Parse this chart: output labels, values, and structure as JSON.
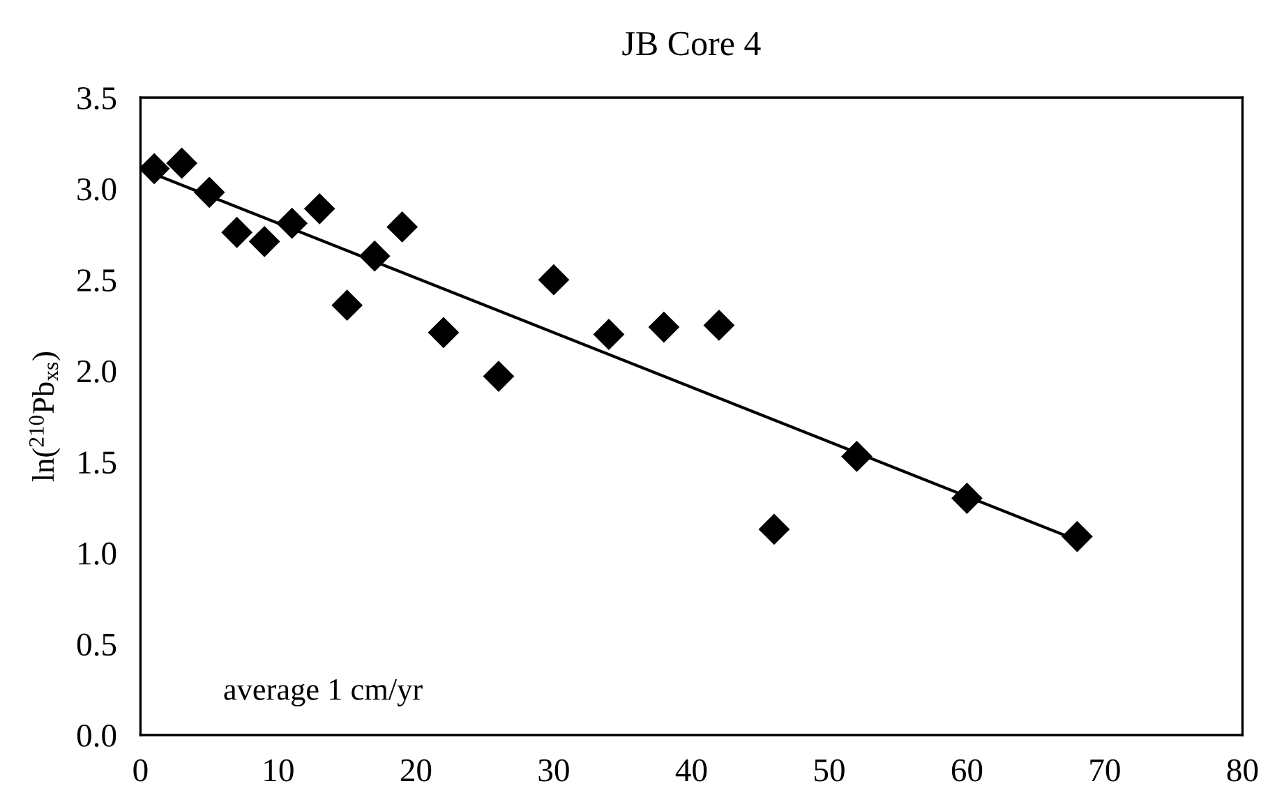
{
  "chart_data": {
    "type": "scatter",
    "title": "JB Core 4",
    "ylabel": "ln($^{210}$Pb$_{xs}$)",
    "annotations": [
      "average 1 cm/yr"
    ],
    "series": [
      {
        "color": "#000000",
        "marker": "diamond",
        "x": [
          1,
          3,
          5,
          7,
          9,
          11,
          13,
          15,
          17,
          19,
          22,
          26,
          30,
          34,
          38,
          42,
          46,
          52,
          60,
          68
        ],
        "values": [
          3.11,
          3.14,
          2.98,
          2.76,
          2.71,
          2.81,
          2.89,
          2.36,
          2.63,
          2.79,
          2.21,
          1.97,
          2.5,
          2.2,
          2.24,
          2.25,
          1.13,
          1.53,
          1.3,
          1.09
        ]
      },
      {
        "type": "line",
        "color": "#000000",
        "marker": "none",
        "line_style": "solid",
        "x": [
          1,
          68
        ],
        "values": [
          3.08,
          1.07
        ]
      }
    ],
    "xlim": [
      0,
      80
    ],
    "xticks": [
      0,
      10,
      20,
      30,
      40,
      50,
      60,
      70,
      80
    ],
    "ylim": [
      0,
      3.5
    ],
    "yticks": [
      {
        "value": 0,
        "label": "0.0"
      },
      {
        "value": 0.5,
        "label": "0.5"
      },
      {
        "value": 1,
        "label": "1.0"
      },
      {
        "value": 1.5,
        "label": "1.5"
      },
      {
        "value": 2,
        "label": "2.0"
      },
      {
        "value": 2.5,
        "label": "2.5"
      },
      {
        "value": 3,
        "label": "3.0"
      },
      {
        "value": 3.5,
        "label": "3.5"
      }
    ],
    "grid": false,
    "legend": false
  }
}
